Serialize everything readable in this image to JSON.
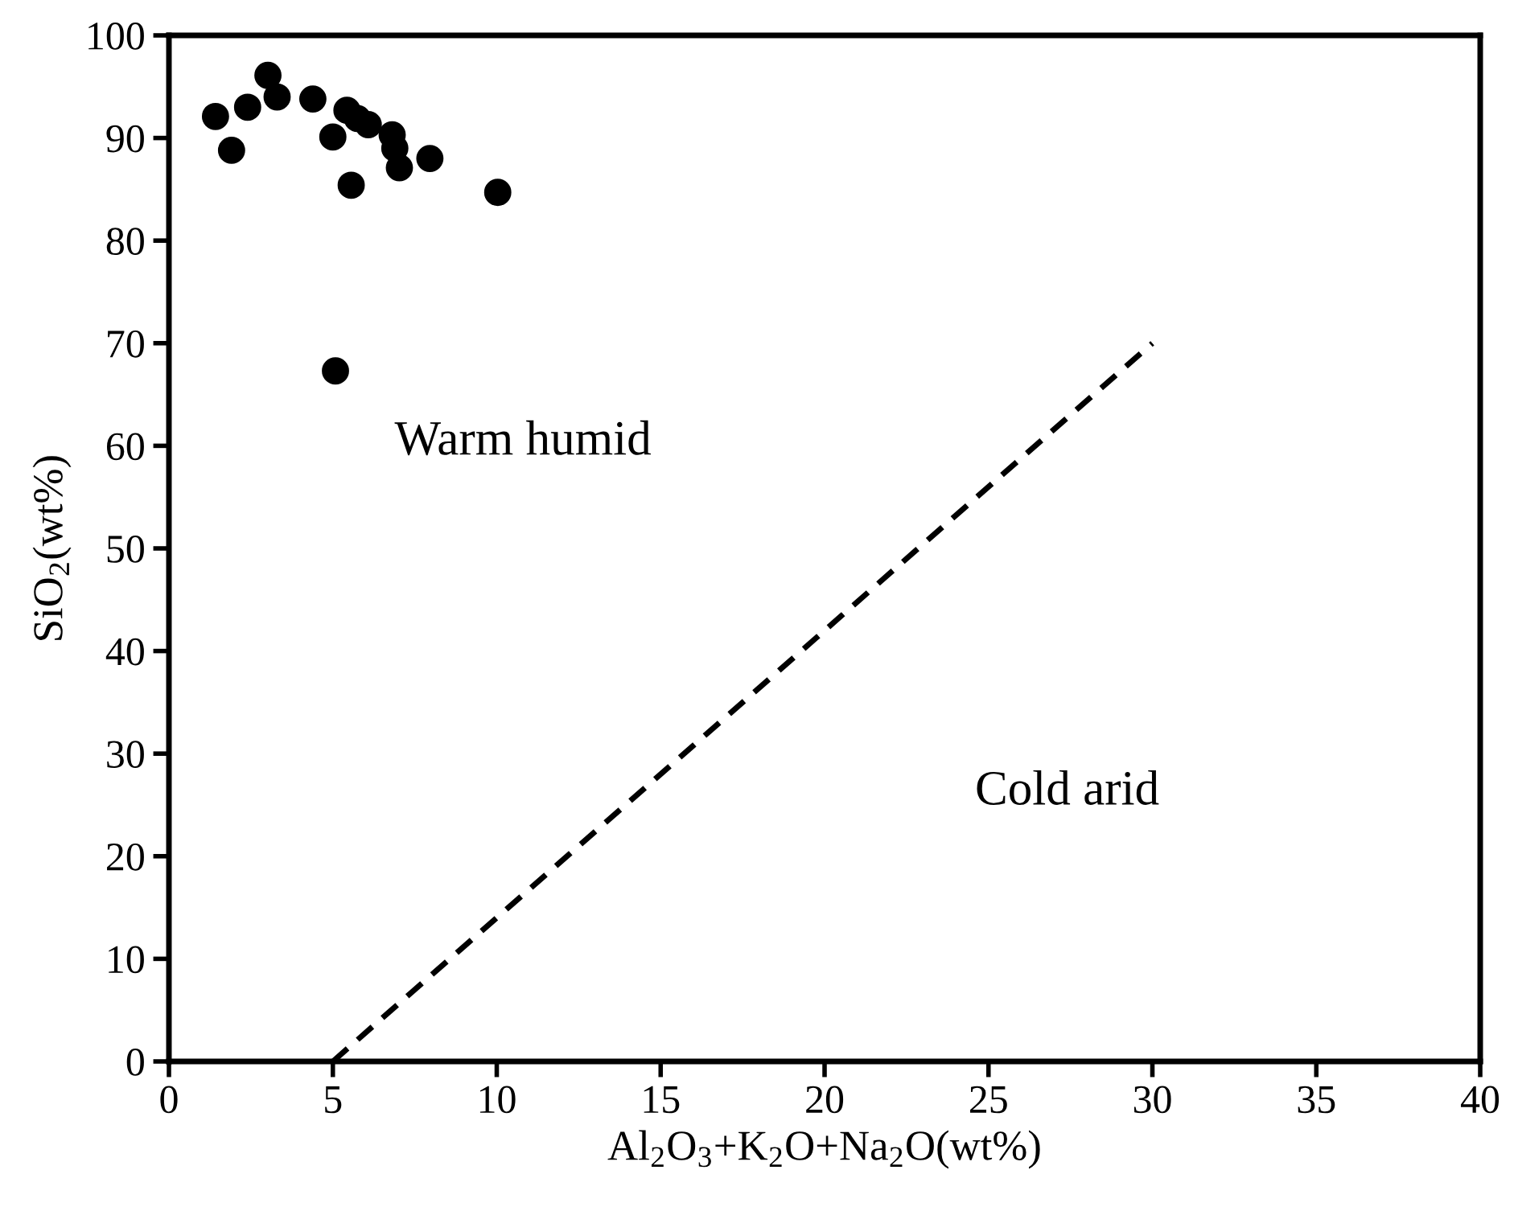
{
  "chart_data": {
    "type": "scatter",
    "xlabel": "Al$_{2}$O$_{3}$+K$_{2}$O+Na$_{2}$O(wt%)",
    "ylabel": "SiO$_{2}$(wt%)",
    "xlim": [
      0,
      40
    ],
    "ylim": [
      0,
      100
    ],
    "xticks": [
      0,
      5,
      10,
      15,
      20,
      25,
      30,
      35,
      40
    ],
    "yticks": [
      0,
      10,
      20,
      30,
      40,
      50,
      60,
      70,
      80,
      90,
      100
    ],
    "grid": false,
    "legend": false,
    "marker": "circle",
    "series": [
      {
        "color": "#000000",
        "x": [
          1.42,
          1.91,
          2.4,
          3.02,
          3.3,
          4.39,
          5.0,
          5.43,
          5.56,
          5.75,
          6.08,
          6.81,
          6.89,
          7.03,
          7.96,
          10.03,
          5.08
        ],
        "values": [
          92.1,
          88.8,
          93.0,
          96.1,
          94.0,
          93.8,
          90.1,
          92.7,
          85.4,
          91.9,
          91.3,
          90.3,
          89.0,
          87.1,
          88.0,
          84.7,
          67.3
        ]
      },
      {
        "type": "line",
        "color": "#000000",
        "line_style": "dashed",
        "marker": "none",
        "x": [
          5,
          30
        ],
        "values": [
          0,
          70
        ]
      }
    ],
    "annotations": [
      "Warm humid",
      "Cold arid"
    ]
  }
}
